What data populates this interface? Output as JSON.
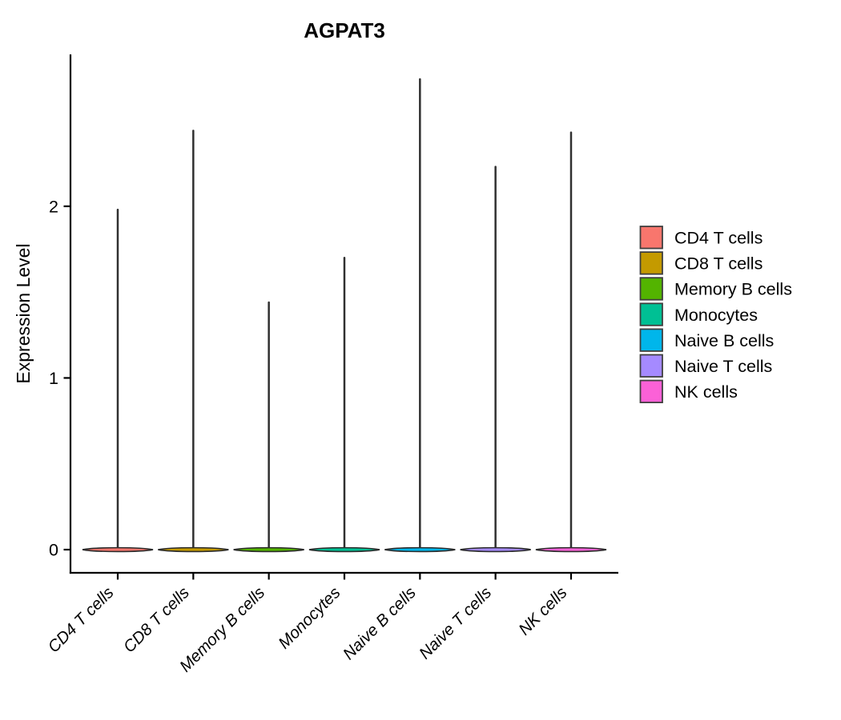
{
  "figure": {
    "background_color": "#ffffff",
    "text_color": "#000000",
    "outline_color": "#2e2e2e"
  },
  "chart_data": {
    "type": "violin",
    "title": "AGPAT3",
    "ylabel": "Expression Level",
    "xlabel": "",
    "ylim": [
      -0.135,
      2.88
    ],
    "yticks": [
      0,
      1,
      2
    ],
    "grid": false,
    "x_label_angle": 45,
    "legend_position": "right",
    "shape_note": "zero-inflated violins: flat wide lens at 0 with a thin spike up to the peak expression value",
    "categories": [
      "CD4 T cells",
      "CD8 T cells",
      "Memory B cells",
      "Monocytes",
      "Naive B cells",
      "Naive T cells",
      "NK cells"
    ],
    "series": [
      {
        "name": "CD4 T cells",
        "color": "#F8766D",
        "zero_bulk": 0,
        "peak_expression": 1.98
      },
      {
        "name": "CD8 T cells",
        "color": "#C49A00",
        "zero_bulk": 0,
        "peak_expression": 2.44
      },
      {
        "name": "Memory B cells",
        "color": "#53B400",
        "zero_bulk": 0,
        "peak_expression": 1.44
      },
      {
        "name": "Monocytes",
        "color": "#00C094",
        "zero_bulk": 0,
        "peak_expression": 1.7
      },
      {
        "name": "Naive B cells",
        "color": "#00B6EB",
        "zero_bulk": 0,
        "peak_expression": 2.74
      },
      {
        "name": "Naive T cells",
        "color": "#A58AFF",
        "zero_bulk": 0,
        "peak_expression": 2.23
      },
      {
        "name": "NK cells",
        "color": "#FB61D7",
        "zero_bulk": 0,
        "peak_expression": 2.43
      }
    ]
  }
}
